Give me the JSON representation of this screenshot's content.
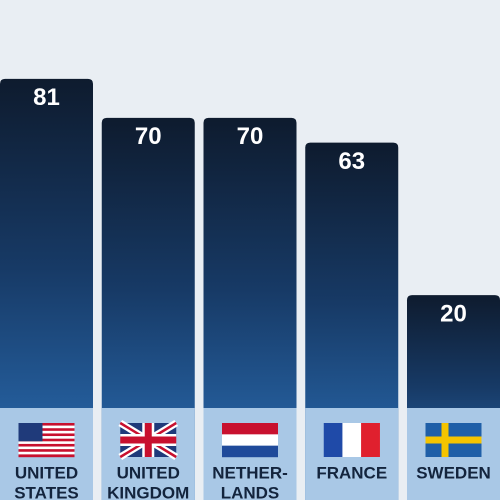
{
  "chart_data": {
    "type": "bar",
    "categories": [
      [
        "UNITED",
        "STATES"
      ],
      [
        "UNITED",
        "KINGDOM"
      ],
      [
        "NETHER-",
        "LANDS"
      ],
      [
        "FRANCE"
      ],
      [
        "SWEDEN"
      ]
    ],
    "values": [
      81,
      70,
      70,
      63,
      20
    ],
    "ylim": [
      -12,
      100
    ]
  }
}
